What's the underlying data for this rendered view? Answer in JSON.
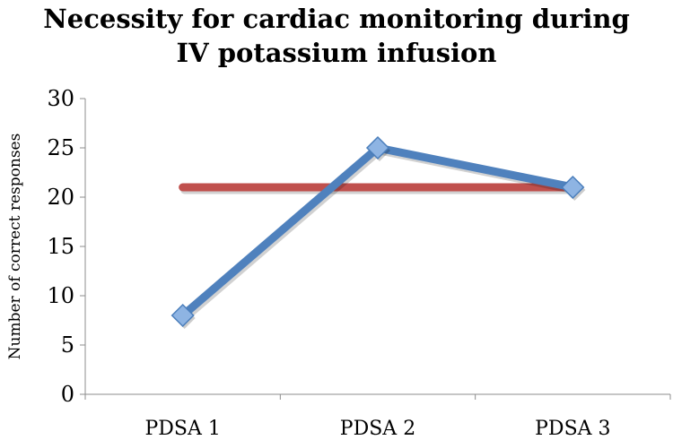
{
  "chart_data": {
    "type": "line",
    "title_lines": [
      "Necessity for cardiac monitoring during",
      "IV potassium infusion"
    ],
    "categories": [
      "PDSA 1",
      "PDSA 2",
      "PDSA 3"
    ],
    "series": [
      {
        "values": [
          8,
          25,
          21
        ],
        "color": "#4F81BD",
        "marker": "diamond"
      },
      {
        "values": [
          21,
          21,
          21
        ],
        "color": "#C0504D",
        "marker": "none"
      }
    ],
    "ylabel": "Number of correct responses",
    "xlabel": "",
    "ylim": [
      0,
      30
    ],
    "yticks": [
      0,
      5,
      10,
      15,
      20,
      25,
      30
    ],
    "grid": false,
    "legend": "none"
  }
}
